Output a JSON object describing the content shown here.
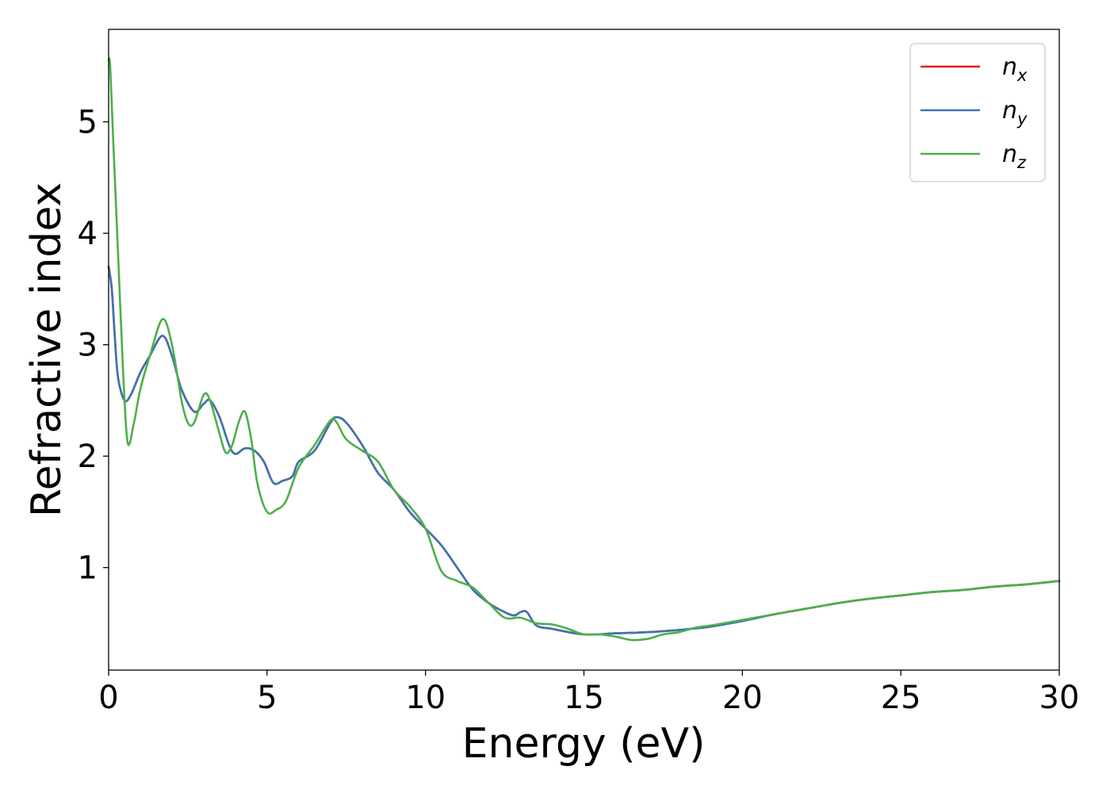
{
  "chart_data": {
    "type": "line",
    "xlabel": "Energy (eV)",
    "ylabel": "Refractive index",
    "xlim": [
      0,
      30
    ],
    "ylim": [
      0.08,
      5.83
    ],
    "xticks": [
      0,
      5,
      10,
      15,
      20,
      25,
      30
    ],
    "yticks": [
      1,
      2,
      3,
      4,
      5
    ],
    "grid": false,
    "legend_position": "top-right",
    "series": [
      {
        "name": "n_x",
        "label_base": "n",
        "label_sub": "x",
        "color": "#e41a1c",
        "x": [
          0,
          0.1,
          0.2,
          0.3,
          0.5,
          0.7,
          1.0,
          1.3,
          1.7,
          2.0,
          2.3,
          2.7,
          3.0,
          3.2,
          3.5,
          3.8,
          4.0,
          4.3,
          4.6,
          4.9,
          5.2,
          5.5,
          5.8,
          6.0,
          6.5,
          7.0,
          7.2,
          7.5,
          8.0,
          8.5,
          9.0,
          9.5,
          10.0,
          10.5,
          11.0,
          11.5,
          12.0,
          12.5,
          12.8,
          13.0,
          13.2,
          13.5,
          14.0,
          15.0,
          16.0,
          17.0,
          18.0,
          19.0,
          20.0,
          21.0,
          22.0,
          23.0,
          24.0,
          25.0,
          26.0,
          27.0,
          28.0,
          29.0,
          30.0
        ],
        "y": [
          3.7,
          3.5,
          3.05,
          2.7,
          2.5,
          2.55,
          2.75,
          2.9,
          3.08,
          2.9,
          2.6,
          2.4,
          2.47,
          2.5,
          2.35,
          2.1,
          2.02,
          2.07,
          2.05,
          1.95,
          1.76,
          1.78,
          1.82,
          1.95,
          2.05,
          2.3,
          2.35,
          2.3,
          2.1,
          1.85,
          1.7,
          1.5,
          1.35,
          1.2,
          1.0,
          0.8,
          0.68,
          0.6,
          0.57,
          0.6,
          0.6,
          0.48,
          0.45,
          0.4,
          0.41,
          0.42,
          0.44,
          0.47,
          0.52,
          0.58,
          0.63,
          0.68,
          0.72,
          0.75,
          0.78,
          0.8,
          0.83,
          0.85,
          0.88
        ]
      },
      {
        "name": "n_y",
        "label_base": "n",
        "label_sub": "y",
        "color": "#3d73b3",
        "x": [
          0,
          0.1,
          0.2,
          0.3,
          0.5,
          0.7,
          1.0,
          1.3,
          1.7,
          2.0,
          2.3,
          2.7,
          3.0,
          3.2,
          3.5,
          3.8,
          4.0,
          4.3,
          4.6,
          4.9,
          5.2,
          5.5,
          5.8,
          6.0,
          6.5,
          7.0,
          7.2,
          7.5,
          8.0,
          8.5,
          9.0,
          9.5,
          10.0,
          10.5,
          11.0,
          11.5,
          12.0,
          12.5,
          12.8,
          13.0,
          13.2,
          13.5,
          14.0,
          15.0,
          16.0,
          17.0,
          18.0,
          19.0,
          20.0,
          21.0,
          22.0,
          23.0,
          24.0,
          25.0,
          26.0,
          27.0,
          28.0,
          29.0,
          30.0
        ],
        "y": [
          3.7,
          3.5,
          3.05,
          2.7,
          2.5,
          2.55,
          2.75,
          2.9,
          3.08,
          2.9,
          2.6,
          2.4,
          2.47,
          2.5,
          2.35,
          2.1,
          2.02,
          2.07,
          2.05,
          1.95,
          1.76,
          1.78,
          1.82,
          1.95,
          2.05,
          2.3,
          2.35,
          2.3,
          2.1,
          1.85,
          1.7,
          1.5,
          1.35,
          1.2,
          1.0,
          0.8,
          0.68,
          0.6,
          0.57,
          0.6,
          0.6,
          0.48,
          0.45,
          0.4,
          0.41,
          0.42,
          0.44,
          0.47,
          0.52,
          0.58,
          0.63,
          0.68,
          0.72,
          0.75,
          0.78,
          0.8,
          0.83,
          0.85,
          0.88
        ]
      },
      {
        "name": "n_z",
        "label_base": "n",
        "label_sub": "z",
        "color": "#4daf4a",
        "x": [
          0,
          0.05,
          0.15,
          0.3,
          0.45,
          0.6,
          0.8,
          1.0,
          1.3,
          1.7,
          2.0,
          2.3,
          2.5,
          2.7,
          3.0,
          3.2,
          3.5,
          3.7,
          3.9,
          4.1,
          4.3,
          4.5,
          4.7,
          5.0,
          5.3,
          5.6,
          6.0,
          6.5,
          7.0,
          7.2,
          7.5,
          8.0,
          8.5,
          9.0,
          9.5,
          10.0,
          10.5,
          11.0,
          11.5,
          12.0,
          12.5,
          13.0,
          13.5,
          14.0,
          14.5,
          15.0,
          15.5,
          16.0,
          16.5,
          17.0,
          17.5,
          18.0,
          18.5,
          19.0,
          20.0,
          21.0,
          22.0,
          23.0,
          24.0,
          25.0,
          26.0,
          27.0,
          28.0,
          29.0,
          30.0
        ],
        "y": [
          5.55,
          5.5,
          4.8,
          3.8,
          2.8,
          2.12,
          2.3,
          2.6,
          2.9,
          3.23,
          3.0,
          2.5,
          2.3,
          2.3,
          2.55,
          2.5,
          2.2,
          2.03,
          2.1,
          2.3,
          2.4,
          2.15,
          1.75,
          1.5,
          1.52,
          1.6,
          1.9,
          2.1,
          2.32,
          2.3,
          2.15,
          2.05,
          1.95,
          1.7,
          1.55,
          1.35,
          0.97,
          0.88,
          0.82,
          0.68,
          0.55,
          0.55,
          0.5,
          0.49,
          0.45,
          0.4,
          0.4,
          0.38,
          0.35,
          0.36,
          0.4,
          0.42,
          0.46,
          0.48,
          0.53,
          0.58,
          0.63,
          0.68,
          0.72,
          0.75,
          0.78,
          0.8,
          0.83,
          0.85,
          0.88
        ]
      }
    ]
  }
}
